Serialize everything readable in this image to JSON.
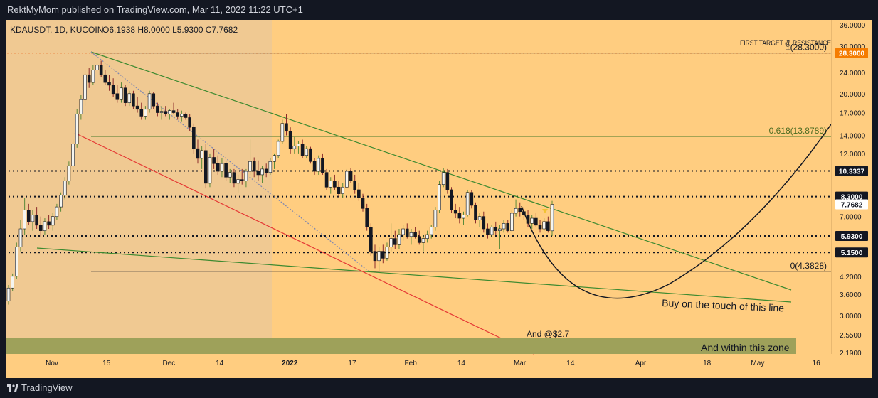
{
  "header": {
    "publisher_line": "RektMyMom published on TradingView.com, Mar 11, 2022 11:22 UTC+1"
  },
  "footer": {
    "brand": "TradingView",
    "logo_icon": "tradingview-logo-icon"
  },
  "chart_data": {
    "type": "candlestick",
    "symbol_info": "KDAUSDT, 1D, KUCOIN",
    "ohlc_label": "O6.1938 H8.0000 L5.9300 C7.7682",
    "y_axis": {
      "scale": "log",
      "ylim": [
        2.19,
        36.0
      ],
      "ticks": [
        "36.0000",
        "30.0000",
        "24.0000",
        "20.0000",
        "17.0000",
        "14.0000",
        "12.0000",
        "10.3337",
        "8.3000",
        "7.7682",
        "7.0000",
        "5.9300",
        "5.1500",
        "4.2000",
        "3.6000",
        "3.0000",
        "2.5500",
        "2.1900"
      ],
      "highlighted_ticks": [
        {
          "value": "28.3000",
          "color": "#f57c00"
        },
        {
          "value": "10.3337",
          "color": "#131722"
        },
        {
          "value": "8.3000",
          "color": "#131722"
        },
        {
          "value": "7.7682",
          "color": "#ffffff"
        },
        {
          "value": "5.9300",
          "color": "#131722"
        },
        {
          "value": "5.1500",
          "color": "#131722"
        }
      ]
    },
    "x_axis": {
      "ticks": [
        {
          "label": "Nov",
          "date": "2021-11-01"
        },
        {
          "label": "15",
          "date": "2021-11-15"
        },
        {
          "label": "Dec",
          "date": "2021-12-01"
        },
        {
          "label": "14",
          "date": "2021-12-14"
        },
        {
          "label": "2022",
          "date": "2022-01-01"
        },
        {
          "label": "17",
          "date": "2022-01-17"
        },
        {
          "label": "Feb",
          "date": "2022-02-01"
        },
        {
          "label": "14",
          "date": "2022-02-14"
        },
        {
          "label": "Mar",
          "date": "2022-03-01"
        },
        {
          "label": "14",
          "date": "2022-03-14"
        },
        {
          "label": "Apr",
          "date": "2022-04-01"
        },
        {
          "label": "18",
          "date": "2022-04-18"
        },
        {
          "label": "May",
          "date": "2022-05-01"
        },
        {
          "label": "16",
          "date": "2022-05-16"
        }
      ]
    },
    "horizontal_levels": [
      {
        "value": 28.3,
        "style": "dotted",
        "color": "#131722"
      },
      {
        "value": 10.3337,
        "style": "dotted",
        "color": "#131722"
      },
      {
        "value": 8.3,
        "style": "dotted",
        "color": "#131722"
      },
      {
        "value": 5.93,
        "style": "dotted",
        "color": "#131722"
      },
      {
        "value": 5.15,
        "style": "dotted",
        "color": "#131722"
      }
    ],
    "fib_levels": [
      {
        "label": "1(28.3000)",
        "value": 28.3
      },
      {
        "label": "0.618(13.8789)",
        "value": 13.8789
      },
      {
        "label": "0(4.3828)",
        "value": 4.3828
      }
    ],
    "annotations": [
      {
        "text": "FIRST TARGET @ RESISTANCE"
      },
      {
        "text": "Buy on the touch of this line"
      },
      {
        "text": "And @$2.7"
      },
      {
        "text": "And within this zone"
      }
    ],
    "candles": [
      {
        "o": 3.4,
        "h": 3.9,
        "l": 3.3,
        "c": 3.8
      },
      {
        "o": 3.8,
        "h": 4.3,
        "l": 3.7,
        "c": 4.2
      },
      {
        "o": 4.2,
        "h": 5.6,
        "l": 4.1,
        "c": 5.4
      },
      {
        "o": 5.4,
        "h": 6.8,
        "l": 5.2,
        "c": 6.3
      },
      {
        "o": 6.3,
        "h": 8.2,
        "l": 6.0,
        "c": 7.4
      },
      {
        "o": 7.4,
        "h": 7.8,
        "l": 6.5,
        "c": 6.7
      },
      {
        "o": 6.7,
        "h": 7.4,
        "l": 6.2,
        "c": 7.1
      },
      {
        "o": 7.1,
        "h": 7.6,
        "l": 6.3,
        "c": 6.5
      },
      {
        "o": 6.5,
        "h": 7.0,
        "l": 5.9,
        "c": 6.2
      },
      {
        "o": 6.2,
        "h": 6.9,
        "l": 6.0,
        "c": 6.7
      },
      {
        "o": 6.7,
        "h": 7.1,
        "l": 6.3,
        "c": 6.5
      },
      {
        "o": 6.5,
        "h": 7.2,
        "l": 6.2,
        "c": 7.0
      },
      {
        "o": 7.0,
        "h": 7.8,
        "l": 6.8,
        "c": 7.6
      },
      {
        "o": 7.6,
        "h": 8.6,
        "l": 7.3,
        "c": 8.4
      },
      {
        "o": 8.4,
        "h": 9.8,
        "l": 8.1,
        "c": 9.5
      },
      {
        "o": 9.5,
        "h": 11.2,
        "l": 9.2,
        "c": 10.8
      },
      {
        "o": 10.8,
        "h": 13.5,
        "l": 10.3,
        "c": 13.0
      },
      {
        "o": 13.0,
        "h": 17.5,
        "l": 12.6,
        "c": 16.8
      },
      {
        "o": 16.8,
        "h": 19.8,
        "l": 16.0,
        "c": 19.0
      },
      {
        "o": 19.0,
        "h": 24.5,
        "l": 18.0,
        "c": 23.5
      },
      {
        "o": 23.5,
        "h": 25.0,
        "l": 21.0,
        "c": 22.0
      },
      {
        "o": 22.0,
        "h": 25.5,
        "l": 21.5,
        "c": 24.5
      },
      {
        "o": 24.5,
        "h": 28.3,
        "l": 23.5,
        "c": 25.5
      },
      {
        "o": 25.5,
        "h": 26.5,
        "l": 23.0,
        "c": 23.5
      },
      {
        "o": 23.5,
        "h": 24.5,
        "l": 21.5,
        "c": 22.0
      },
      {
        "o": 22.0,
        "h": 23.5,
        "l": 20.5,
        "c": 21.5
      },
      {
        "o": 21.5,
        "h": 22.8,
        "l": 19.5,
        "c": 20.0
      },
      {
        "o": 20.0,
        "h": 21.5,
        "l": 18.5,
        "c": 19.0
      },
      {
        "o": 19.0,
        "h": 22.0,
        "l": 18.5,
        "c": 21.0
      },
      {
        "o": 21.0,
        "h": 21.5,
        "l": 18.0,
        "c": 18.5
      },
      {
        "o": 18.5,
        "h": 20.5,
        "l": 18.0,
        "c": 20.0
      },
      {
        "o": 20.0,
        "h": 20.5,
        "l": 17.5,
        "c": 18.0
      },
      {
        "o": 18.0,
        "h": 19.5,
        "l": 17.0,
        "c": 17.5
      },
      {
        "o": 17.5,
        "h": 18.5,
        "l": 16.0,
        "c": 16.5
      },
      {
        "o": 16.5,
        "h": 18.0,
        "l": 16.0,
        "c": 17.5
      },
      {
        "o": 17.5,
        "h": 20.5,
        "l": 17.0,
        "c": 20.0
      },
      {
        "o": 20.0,
        "h": 20.3,
        "l": 17.5,
        "c": 18.0
      },
      {
        "o": 18.0,
        "h": 18.5,
        "l": 16.5,
        "c": 17.0
      },
      {
        "o": 17.0,
        "h": 18.0,
        "l": 16.0,
        "c": 17.2
      },
      {
        "o": 17.2,
        "h": 18.0,
        "l": 16.5,
        "c": 16.8
      },
      {
        "o": 16.8,
        "h": 17.5,
        "l": 16.0,
        "c": 17.3
      },
      {
        "o": 17.3,
        "h": 18.5,
        "l": 16.8,
        "c": 17.0
      },
      {
        "o": 17.0,
        "h": 17.5,
        "l": 16.0,
        "c": 16.5
      },
      {
        "o": 16.5,
        "h": 17.3,
        "l": 15.8,
        "c": 16.8
      },
      {
        "o": 16.8,
        "h": 17.0,
        "l": 16.0,
        "c": 16.3
      },
      {
        "o": 16.3,
        "h": 16.8,
        "l": 14.5,
        "c": 15.0
      },
      {
        "o": 15.0,
        "h": 15.5,
        "l": 12.0,
        "c": 12.5
      },
      {
        "o": 12.5,
        "h": 13.5,
        "l": 11.0,
        "c": 11.5
      },
      {
        "o": 11.5,
        "h": 12.8,
        "l": 10.5,
        "c": 12.3
      },
      {
        "o": 12.3,
        "h": 13.0,
        "l": 8.9,
        "c": 9.3
      },
      {
        "o": 9.3,
        "h": 12.0,
        "l": 9.0,
        "c": 11.6
      },
      {
        "o": 11.6,
        "h": 12.5,
        "l": 10.5,
        "c": 11.0
      },
      {
        "o": 11.0,
        "h": 11.8,
        "l": 10.0,
        "c": 10.3
      },
      {
        "o": 10.3,
        "h": 11.5,
        "l": 9.8,
        "c": 11.0
      },
      {
        "o": 11.0,
        "h": 11.3,
        "l": 9.5,
        "c": 9.8
      },
      {
        "o": 9.8,
        "h": 10.5,
        "l": 9.3,
        "c": 10.2
      },
      {
        "o": 10.2,
        "h": 10.5,
        "l": 9.0,
        "c": 9.3
      },
      {
        "o": 9.3,
        "h": 10.0,
        "l": 8.6,
        "c": 9.6
      },
      {
        "o": 9.6,
        "h": 10.5,
        "l": 9.2,
        "c": 9.5
      },
      {
        "o": 9.5,
        "h": 10.5,
        "l": 9.0,
        "c": 10.3
      },
      {
        "o": 10.3,
        "h": 13.5,
        "l": 10.0,
        "c": 11.2
      },
      {
        "o": 11.2,
        "h": 11.6,
        "l": 9.8,
        "c": 10.3
      },
      {
        "o": 10.3,
        "h": 11.3,
        "l": 9.5,
        "c": 10.0
      },
      {
        "o": 10.0,
        "h": 10.8,
        "l": 9.3,
        "c": 10.5
      },
      {
        "o": 10.5,
        "h": 11.0,
        "l": 9.8,
        "c": 10.2
      },
      {
        "o": 10.2,
        "h": 11.5,
        "l": 10.0,
        "c": 11.2
      },
      {
        "o": 11.2,
        "h": 12.0,
        "l": 10.5,
        "c": 11.8
      },
      {
        "o": 11.8,
        "h": 13.5,
        "l": 11.5,
        "c": 13.3
      },
      {
        "o": 13.3,
        "h": 16.0,
        "l": 13.0,
        "c": 15.5
      },
      {
        "o": 15.5,
        "h": 16.8,
        "l": 14.0,
        "c": 14.5
      },
      {
        "o": 14.5,
        "h": 15.0,
        "l": 12.0,
        "c": 12.5
      },
      {
        "o": 12.5,
        "h": 13.8,
        "l": 12.0,
        "c": 12.8
      },
      {
        "o": 12.8,
        "h": 13.3,
        "l": 12.0,
        "c": 13.0
      },
      {
        "o": 13.0,
        "h": 13.5,
        "l": 11.5,
        "c": 11.8
      },
      {
        "o": 11.8,
        "h": 12.8,
        "l": 11.5,
        "c": 12.5
      },
      {
        "o": 12.5,
        "h": 12.7,
        "l": 11.0,
        "c": 11.2
      },
      {
        "o": 11.2,
        "h": 11.5,
        "l": 10.0,
        "c": 10.3
      },
      {
        "o": 10.3,
        "h": 11.8,
        "l": 10.0,
        "c": 11.5
      },
      {
        "o": 11.5,
        "h": 12.0,
        "l": 10.0,
        "c": 10.2
      },
      {
        "o": 10.2,
        "h": 10.5,
        "l": 8.8,
        "c": 9.0
      },
      {
        "o": 9.0,
        "h": 9.8,
        "l": 8.5,
        "c": 9.5
      },
      {
        "o": 9.5,
        "h": 10.0,
        "l": 8.8,
        "c": 9.0
      },
      {
        "o": 9.0,
        "h": 9.5,
        "l": 8.3,
        "c": 8.5
      },
      {
        "o": 8.5,
        "h": 9.3,
        "l": 8.2,
        "c": 9.0
      },
      {
        "o": 9.0,
        "h": 10.5,
        "l": 8.9,
        "c": 10.3
      },
      {
        "o": 10.3,
        "h": 10.6,
        "l": 9.3,
        "c": 9.5
      },
      {
        "o": 9.5,
        "h": 10.0,
        "l": 8.5,
        "c": 8.8
      },
      {
        "o": 8.8,
        "h": 9.3,
        "l": 8.0,
        "c": 8.2
      },
      {
        "o": 8.2,
        "h": 8.5,
        "l": 7.3,
        "c": 7.5
      },
      {
        "o": 7.5,
        "h": 7.8,
        "l": 6.2,
        "c": 6.4
      },
      {
        "o": 6.4,
        "h": 6.6,
        "l": 5.0,
        "c": 5.2
      },
      {
        "o": 5.2,
        "h": 5.5,
        "l": 4.5,
        "c": 4.8
      },
      {
        "o": 4.8,
        "h": 5.4,
        "l": 4.4,
        "c": 5.2
      },
      {
        "o": 5.2,
        "h": 5.5,
        "l": 4.7,
        "c": 4.9
      },
      {
        "o": 4.9,
        "h": 5.6,
        "l": 4.8,
        "c": 5.4
      },
      {
        "o": 5.4,
        "h": 6.6,
        "l": 5.2,
        "c": 5.8
      },
      {
        "o": 5.8,
        "h": 6.2,
        "l": 5.3,
        "c": 5.5
      },
      {
        "o": 5.5,
        "h": 6.3,
        "l": 5.3,
        "c": 6.0
      },
      {
        "o": 6.0,
        "h": 6.5,
        "l": 5.7,
        "c": 6.3
      },
      {
        "o": 6.3,
        "h": 6.6,
        "l": 5.8,
        "c": 5.9
      },
      {
        "o": 5.9,
        "h": 6.3,
        "l": 5.5,
        "c": 6.1
      },
      {
        "o": 6.1,
        "h": 6.4,
        "l": 5.8,
        "c": 5.9
      },
      {
        "o": 5.9,
        "h": 6.2,
        "l": 5.5,
        "c": 5.6
      },
      {
        "o": 5.6,
        "h": 6.0,
        "l": 5.2,
        "c": 5.8
      },
      {
        "o": 5.8,
        "h": 6.2,
        "l": 5.6,
        "c": 6.0
      },
      {
        "o": 6.0,
        "h": 6.5,
        "l": 5.8,
        "c": 6.4
      },
      {
        "o": 6.4,
        "h": 7.6,
        "l": 6.2,
        "c": 7.4
      },
      {
        "o": 7.4,
        "h": 9.5,
        "l": 7.2,
        "c": 9.2
      },
      {
        "o": 9.2,
        "h": 10.6,
        "l": 9.0,
        "c": 10.2
      },
      {
        "o": 10.2,
        "h": 10.5,
        "l": 8.5,
        "c": 8.8
      },
      {
        "o": 8.8,
        "h": 9.0,
        "l": 7.2,
        "c": 7.4
      },
      {
        "o": 7.4,
        "h": 7.8,
        "l": 6.9,
        "c": 7.2
      },
      {
        "o": 7.2,
        "h": 7.6,
        "l": 6.6,
        "c": 6.9
      },
      {
        "o": 6.9,
        "h": 7.3,
        "l": 6.5,
        "c": 7.1
      },
      {
        "o": 7.1,
        "h": 8.8,
        "l": 7.0,
        "c": 8.6
      },
      {
        "o": 8.6,
        "h": 8.8,
        "l": 7.5,
        "c": 7.7
      },
      {
        "o": 7.7,
        "h": 7.9,
        "l": 6.6,
        "c": 6.8
      },
      {
        "o": 6.8,
        "h": 7.2,
        "l": 6.4,
        "c": 7.0
      },
      {
        "o": 7.0,
        "h": 7.3,
        "l": 6.1,
        "c": 6.3
      },
      {
        "o": 6.3,
        "h": 6.6,
        "l": 5.8,
        "c": 6.0
      },
      {
        "o": 6.0,
        "h": 6.5,
        "l": 5.9,
        "c": 6.4
      },
      {
        "o": 6.4,
        "h": 6.7,
        "l": 6.0,
        "c": 6.2
      },
      {
        "o": 6.2,
        "h": 6.5,
        "l": 5.3,
        "c": 6.3
      },
      {
        "o": 6.3,
        "h": 6.8,
        "l": 6.1,
        "c": 6.6
      },
      {
        "o": 6.6,
        "h": 6.8,
        "l": 6.1,
        "c": 6.2
      },
      {
        "o": 6.2,
        "h": 7.4,
        "l": 6.1,
        "c": 7.2
      },
      {
        "o": 7.2,
        "h": 8.1,
        "l": 7.0,
        "c": 7.5
      },
      {
        "o": 7.5,
        "h": 7.9,
        "l": 7.0,
        "c": 7.3
      },
      {
        "o": 7.3,
        "h": 7.6,
        "l": 6.8,
        "c": 7.1
      },
      {
        "o": 7.1,
        "h": 7.4,
        "l": 6.4,
        "c": 6.6
      },
      {
        "o": 6.6,
        "h": 7.1,
        "l": 6.3,
        "c": 6.9
      },
      {
        "o": 6.9,
        "h": 7.2,
        "l": 6.4,
        "c": 6.5
      },
      {
        "o": 6.5,
        "h": 6.8,
        "l": 6.1,
        "c": 6.3
      },
      {
        "o": 6.3,
        "h": 6.9,
        "l": 6.2,
        "c": 6.7
      },
      {
        "o": 6.7,
        "h": 7.0,
        "l": 6.1,
        "c": 6.2
      },
      {
        "o": 6.1938,
        "h": 8.0,
        "l": 5.93,
        "c": 7.7682
      }
    ]
  }
}
